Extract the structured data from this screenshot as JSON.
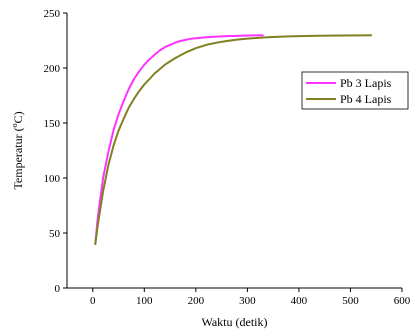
{
  "chart_data": {
    "type": "line",
    "title": "",
    "xlabel": "Waktu (detik)",
    "ylabel_main": "Temperatur (",
    "ylabel_sup": "o",
    "ylabel_end": "C)",
    "xlim": [
      -50,
      600
    ],
    "ylim": [
      0,
      250
    ],
    "xticks": [
      0,
      100,
      200,
      300,
      400,
      500,
      600
    ],
    "yticks": [
      0,
      50,
      100,
      150,
      200,
      250
    ],
    "xtick_labels": [
      "0",
      "100",
      "200",
      "300",
      "400",
      "500",
      "600"
    ],
    "ytick_labels": [
      "0",
      "50",
      "100",
      "150",
      "200",
      "250"
    ],
    "grid": false,
    "legend_position": "upper-right",
    "series": [
      {
        "name": "Pb 3 Lapis",
        "color": "#ff33ff",
        "x": [
          5,
          10,
          20,
          30,
          40,
          50,
          60,
          70,
          80,
          90,
          100,
          110,
          120,
          130,
          140,
          150,
          160,
          170,
          180,
          190,
          200,
          220,
          240,
          260,
          280,
          300,
          330
        ],
        "y": [
          40,
          65,
          100,
          123,
          143,
          158,
          170,
          181,
          190,
          197,
          203,
          208,
          212,
          216,
          219,
          221,
          223,
          224.5,
          225.5,
          226.5,
          227,
          228,
          228.5,
          229,
          229.2,
          229.5,
          229.7
        ]
      },
      {
        "name": "Pb 4 Lapis",
        "color": "#808020",
        "x": [
          5,
          10,
          20,
          30,
          40,
          50,
          60,
          70,
          80,
          90,
          100,
          120,
          140,
          160,
          180,
          200,
          220,
          240,
          260,
          280,
          300,
          320,
          340,
          360,
          380,
          400,
          440,
          480,
          520,
          540
        ],
        "y": [
          40,
          58,
          88,
          111,
          129,
          143,
          154,
          164,
          172,
          179,
          185,
          195,
          203,
          209,
          214,
          218,
          221,
          223,
          224.5,
          225.8,
          226.7,
          227.4,
          228,
          228.4,
          228.7,
          229,
          229.3,
          229.5,
          229.6,
          229.7
        ]
      }
    ]
  }
}
